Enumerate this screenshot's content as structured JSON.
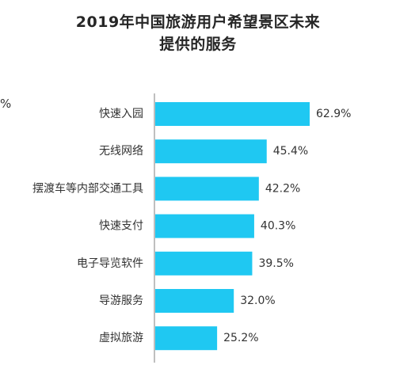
{
  "chart_data": {
    "type": "bar",
    "orientation": "horizontal",
    "title_line1": "2019年中国旅游用户希望景区未来",
    "title_line2": "提供的服务",
    "stray_text": "%",
    "categories": [
      "快速入园",
      "无线网络",
      "摆渡车等内部交通工具",
      "快速支付",
      "电子导览软件",
      "导游服务",
      "虚拟旅游"
    ],
    "values": [
      62.9,
      45.4,
      42.2,
      40.3,
      39.5,
      32.0,
      25.2
    ],
    "value_labels": [
      "62.9%",
      "45.4%",
      "42.2%",
      "40.3%",
      "39.5%",
      "32.0%",
      "25.2%"
    ],
    "bar_color": "#1fc8f2",
    "axis_color": "#7f7f7f",
    "xlabel": "",
    "ylabel": "",
    "grid": false,
    "legend": "none"
  }
}
